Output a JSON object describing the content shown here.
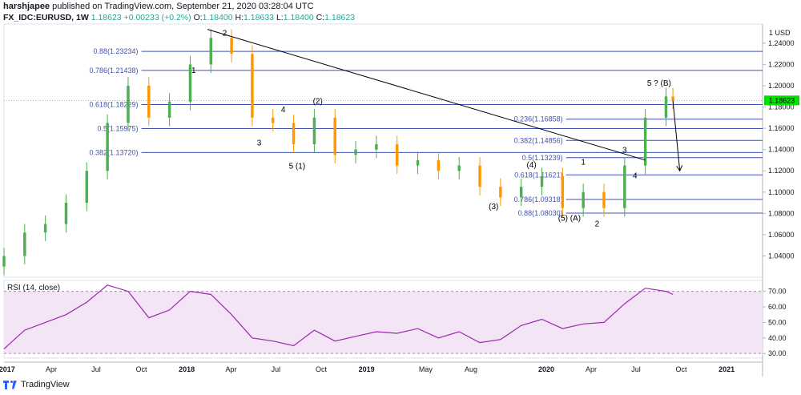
{
  "header": {
    "publisher": "harshjapee",
    "published_text": "published on TradingView.com, September 21, 2020 03:28:04 UTC",
    "symbol": "FX_IDC:EURUSD, 1W",
    "last": "1.18623",
    "change": "+0.00233 (+0.2%)",
    "o_label": "O:",
    "o_value": "1.18400",
    "h_label": "H:",
    "h_value": "1.18633",
    "l_label": "L:",
    "l_value": "1.18400",
    "c_label": "C:",
    "c_value": "1.18623"
  },
  "logo": {
    "text": "TradingView",
    "icon": "tradingview-logo-icon"
  },
  "colors": {
    "up": "#4caf50",
    "down": "#ff9800",
    "fib": "#3f51b5",
    "trend": "#000000",
    "rsi_line": "#9c27b0",
    "rsi_band": "#f3e5f5",
    "price_tag": "#00e000"
  },
  "chart_data": {
    "type": "candlestick",
    "title": "",
    "price_axis": {
      "unit_label": "1 USD",
      "range": [
        1.02,
        1.258
      ],
      "ticks": [
        "1.24000",
        "1.22000",
        "1.20000",
        "1.18000",
        "1.16000",
        "1.14000",
        "1.12000",
        "1.10000",
        "1.08000",
        "1.06000",
        "1.04000"
      ],
      "tick_values": [
        1.24,
        1.22,
        1.2,
        1.18,
        1.16,
        1.14,
        1.12,
        1.1,
        1.08,
        1.06,
        1.04
      ],
      "last_price_tag": "1.18623",
      "last_price": 1.18623
    },
    "time_axis": {
      "labels": [
        "2017",
        "Apr",
        "Jul",
        "Oct",
        "2018",
        "Apr",
        "Jul",
        "Oct",
        "2019",
        "May",
        "Aug",
        "2020",
        "Apr",
        "Jul",
        "Oct",
        "2021"
      ],
      "label_dates": [
        "2017-01-01",
        "2017-04-01",
        "2017-07-01",
        "2017-10-01",
        "2018-01-01",
        "2018-04-01",
        "2018-07-01",
        "2018-10-01",
        "2019-01-01",
        "2019-05-01",
        "2019-08-01",
        "2020-01-01",
        "2020-04-01",
        "2020-07-01",
        "2020-10-01",
        "2021-01-01"
      ],
      "range": [
        "2016-12-26",
        "2021-03-15"
      ],
      "bold": [
        "2017",
        "2018",
        "2019",
        "2020",
        "2021"
      ]
    },
    "series": [
      {
        "name": "EURUSD",
        "x": [
          "2016-12-26",
          "2017-02-06",
          "2017-03-20",
          "2017-05-01",
          "2017-06-12",
          "2017-07-24",
          "2017-09-04",
          "2017-10-16",
          "2017-11-27",
          "2018-01-08",
          "2018-02-19",
          "2018-04-02",
          "2018-05-14",
          "2018-06-25",
          "2018-08-06",
          "2018-09-17",
          "2018-10-29",
          "2018-12-10",
          "2019-01-21",
          "2019-03-04",
          "2019-04-15",
          "2019-05-27",
          "2019-07-08",
          "2019-08-19",
          "2019-09-30",
          "2019-11-11",
          "2019-12-23",
          "2020-02-03",
          "2020-03-16",
          "2020-04-27",
          "2020-06-08",
          "2020-07-20",
          "2020-08-31",
          "2020-09-14"
        ],
        "values": [
          1.04,
          1.062,
          1.07,
          1.09,
          1.12,
          1.165,
          1.2,
          1.17,
          1.185,
          1.22,
          1.245,
          1.23,
          1.17,
          1.165,
          1.145,
          1.17,
          1.135,
          1.14,
          1.145,
          1.125,
          1.13,
          1.12,
          1.125,
          1.105,
          1.095,
          1.105,
          1.115,
          1.085,
          1.1,
          1.085,
          1.125,
          1.17,
          1.19,
          1.186
        ]
      }
    ],
    "trendline": {
      "from": {
        "x": "2018-02-12",
        "y": 1.253
      },
      "to": {
        "x": "2020-07-20",
        "y": 1.13
      }
    },
    "forecast_arrow": {
      "from": {
        "x": "2020-09-14",
        "y": 1.186
      },
      "to": {
        "x": "2020-09-28",
        "y": 1.12
      }
    },
    "fib_levels": [
      {
        "label": "0.88(1.23234)",
        "value": 1.23234,
        "from": "2017-10-01",
        "to": "2021-03-15"
      },
      {
        "label": "0.786(1.21438)",
        "value": 1.21438,
        "from": "2017-10-01",
        "to": "2021-03-15"
      },
      {
        "label": "0.618(1.18229)",
        "value": 1.18229,
        "from": "2017-10-01",
        "to": "2021-03-15"
      },
      {
        "label": "0.5(1.15975)",
        "value": 1.15975,
        "from": "2017-10-01",
        "to": "2021-03-15"
      },
      {
        "label": "0.382(1.13720)",
        "value": 1.1372,
        "from": "2017-10-01",
        "to": "2021-03-15"
      },
      {
        "label": "0.236(1.16858)",
        "value": 1.16858,
        "from": "2020-02-10",
        "to": "2021-03-15"
      },
      {
        "label": "0.382(1.14856)",
        "value": 1.14856,
        "from": "2020-02-10",
        "to": "2021-03-15"
      },
      {
        "label": "0.5(1.13239)",
        "value": 1.13239,
        "from": "2020-02-10",
        "to": "2021-03-15"
      },
      {
        "label": "0.618(1.11621)",
        "value": 1.11621,
        "from": "2020-02-10",
        "to": "2021-03-15"
      },
      {
        "label": "0.786(1.09318)",
        "value": 1.09318,
        "from": "2020-02-10",
        "to": "2021-03-15"
      },
      {
        "label": "0.88(1.08030)",
        "value": 1.0803,
        "from": "2020-02-10",
        "to": "2021-03-15"
      }
    ],
    "wave_labels": [
      {
        "text": "1",
        "x": "2018-01-15",
        "y": 1.212
      },
      {
        "text": "2",
        "x": "2018-03-19",
        "y": 1.247
      },
      {
        "text": "3",
        "x": "2018-05-28",
        "y": 1.144
      },
      {
        "text": "4",
        "x": "2018-07-16",
        "y": 1.175
      },
      {
        "text": "5 (1)",
        "x": "2018-08-13",
        "y": 1.122
      },
      {
        "text": "(2)",
        "x": "2018-09-24",
        "y": 1.183
      },
      {
        "text": "(3)",
        "x": "2019-09-16",
        "y": 1.084
      },
      {
        "text": "(4)",
        "x": "2019-12-02",
        "y": 1.123
      },
      {
        "text": "(5) (A)",
        "x": "2020-02-17",
        "y": 1.073
      },
      {
        "text": "1",
        "x": "2020-03-16",
        "y": 1.126
      },
      {
        "text": "2",
        "x": "2020-04-13",
        "y": 1.068
      },
      {
        "text": "3",
        "x": "2020-06-08",
        "y": 1.137
      },
      {
        "text": "4",
        "x": "2020-06-29",
        "y": 1.113
      },
      {
        "text": "5 ? (B)",
        "x": "2020-08-17",
        "y": 1.2
      }
    ],
    "rsi": {
      "label": "RSI (14, close)",
      "range": [
        27,
        77
      ],
      "ticks": [
        "70.00",
        "60.00",
        "50.00",
        "40.00",
        "30.00"
      ],
      "tick_values": [
        70,
        60,
        50,
        40,
        30
      ],
      "band": [
        30,
        70
      ],
      "x": [
        "2016-12-26",
        "2017-02-06",
        "2017-03-20",
        "2017-05-01",
        "2017-06-12",
        "2017-07-24",
        "2017-09-04",
        "2017-10-16",
        "2017-11-27",
        "2018-01-08",
        "2018-02-19",
        "2018-04-02",
        "2018-05-14",
        "2018-06-25",
        "2018-08-06",
        "2018-09-17",
        "2018-10-29",
        "2018-12-10",
        "2019-01-21",
        "2019-03-04",
        "2019-04-15",
        "2019-05-27",
        "2019-07-08",
        "2019-08-19",
        "2019-09-30",
        "2019-11-11",
        "2019-12-23",
        "2020-02-03",
        "2020-03-16",
        "2020-04-27",
        "2020-06-08",
        "2020-07-20",
        "2020-08-31",
        "2020-09-14"
      ],
      "values": [
        33,
        45,
        50,
        55,
        63,
        74,
        70,
        53,
        58,
        70,
        68,
        55,
        40,
        38,
        35,
        45,
        38,
        41,
        44,
        43,
        46,
        40,
        44,
        37,
        39,
        48,
        52,
        46,
        49,
        50,
        62,
        72,
        70,
        68
      ]
    }
  }
}
